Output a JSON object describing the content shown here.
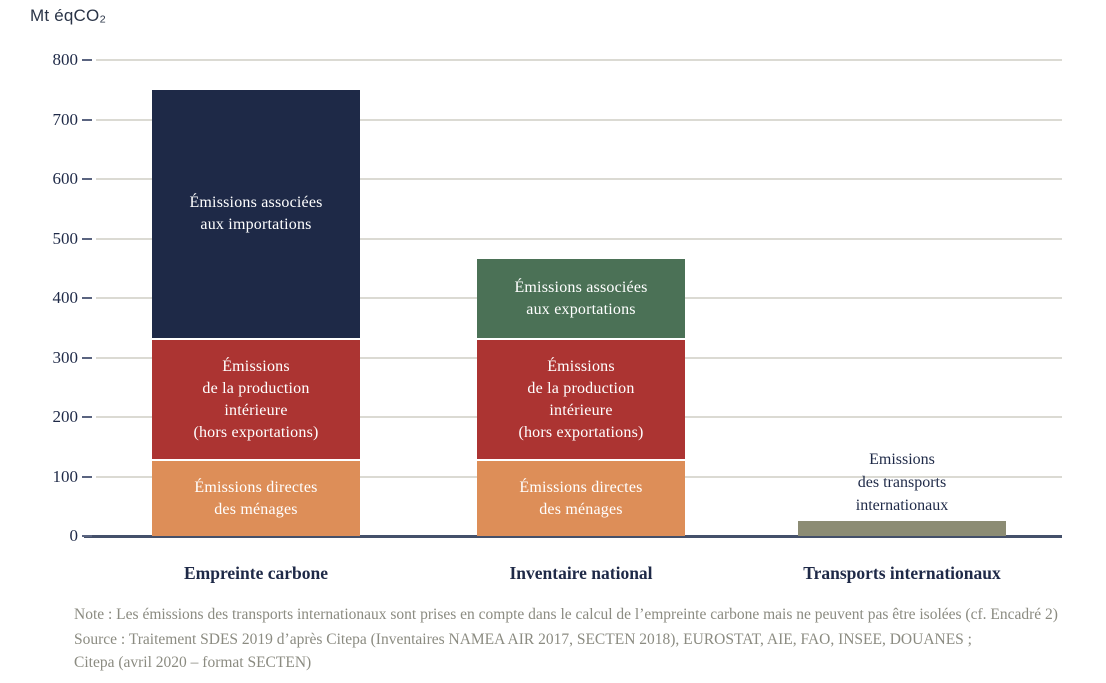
{
  "title": "Mt éqCO₂",
  "footnotes": {
    "note": "Note : Les émissions des transports internationaux sont prises en compte dans le calcul de l’empreinte carbone mais ne peuvent pas être isolées (cf. Encadré 2)",
    "source_line1": "Source : Traitement SDES 2019 d’après Citepa (Inventaires NAMEA AIR 2017, SECTEN 2018), EUROSTAT, AIE, FAO, INSEE, DOUANES ;",
    "source_line2": "Citepa (avril 2020 – format SECTEN)"
  },
  "colors": {
    "navy": "#1E2947",
    "red": "#AC3432",
    "orange": "#DD8E58",
    "green": "#4B7156",
    "olive": "#8C8C74",
    "axis_text": "#1E2947",
    "gridline": "#DBDAD3",
    "baseline": "#44506A",
    "footnote_text": "#8B8B81"
  },
  "chart_data": {
    "type": "bar",
    "stacked": true,
    "title": "Mt éqCO₂",
    "ylabel": "Mt éqCO₂",
    "xlabel": "",
    "ylim": [
      0,
      800
    ],
    "ytick_interval": 100,
    "yticks": [
      0,
      100,
      200,
      300,
      400,
      500,
      600,
      700,
      800
    ],
    "grid": true,
    "legend": "none (labels inside segments)",
    "categories": [
      "Empreinte carbone",
      "Inventaire national",
      "Transports internationaux"
    ],
    "bars": [
      {
        "category": "Empreinte carbone",
        "total": 749,
        "segments": [
          {
            "name": "Émissions directes des ménages",
            "value": 126,
            "color": "#DD8E58",
            "label_lines": [
              "Émissions directes",
              "des ménages"
            ]
          },
          {
            "name": "Émissions de la production intérieure (hors exportations)",
            "value": 203,
            "color": "#AC3432",
            "label_lines": [
              "Émissions",
              "de la production",
              "intérieure",
              "(hors exportations)"
            ]
          },
          {
            "name": "Émissions associées aux importations",
            "value": 420,
            "color": "#1E2947",
            "label_lines": [
              "Émissions associées",
              "aux importations"
            ]
          }
        ]
      },
      {
        "category": "Inventaire national",
        "total": 465,
        "segments": [
          {
            "name": "Émissions directes des ménages",
            "value": 126,
            "color": "#DD8E58",
            "label_lines": [
              "Émissions directes",
              "des ménages"
            ]
          },
          {
            "name": "Émissions de la production intérieure (hors exportations)",
            "value": 203,
            "color": "#AC3432",
            "label_lines": [
              "Émissions",
              "de la production",
              "intérieure",
              "(hors exportations)"
            ]
          },
          {
            "name": "Émissions associées aux exportations",
            "value": 136,
            "color": "#4B7156",
            "label_lines": [
              "Émissions associées",
              "aux exportations"
            ]
          }
        ]
      },
      {
        "category": "Transports internationaux",
        "total": 25,
        "outside_label_lines": [
          "Emissions",
          "des transports",
          "internationaux"
        ],
        "segments": [
          {
            "name": "Emissions des transports internationaux",
            "value": 25,
            "color": "#8C8C74",
            "label_lines": []
          }
        ]
      }
    ]
  }
}
